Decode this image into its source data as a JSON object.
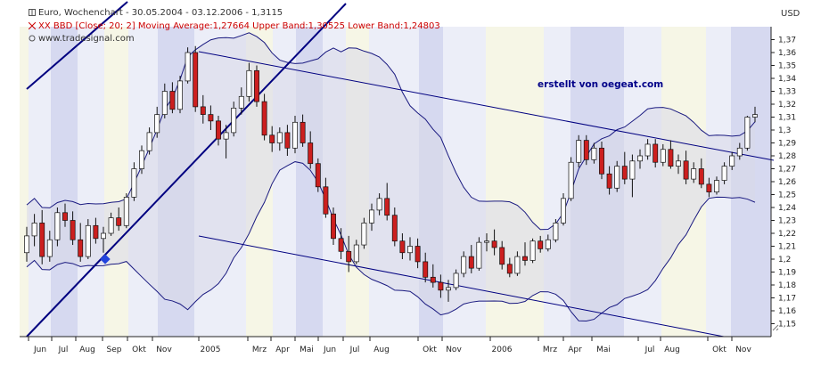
{
  "header": {
    "title": "Euro, Wochenchart - 30.05.2004 - 03.12.2006 - 1,3115",
    "indicator": "XX BBD [Close; 20; 2] Moving Average:1,27664 Upper Band:1,30525 Lower Band:1,24803",
    "source": "www.tradesignal.com"
  },
  "currency": "USD",
  "annotation": "erstellt von oegeat.com",
  "colors": {
    "up_candle": "#ffffff",
    "down_candle": "#cc1f1f",
    "band_line": "#1a1a80",
    "trend_line": "#000080",
    "band_fill": "#d9d9e8",
    "stripe_light": "#eceef8",
    "stripe_yellow": "#f6f6e6",
    "stripe_blue": "#d6d9f0",
    "marker": "#2244dd"
  },
  "chart_data": {
    "type": "candlestick",
    "title": "Euro, Wochenchart - 30.05.2004 - 03.12.2006 - 1,3115",
    "ylabel": "USD",
    "ylim": [
      1.14,
      1.38
    ],
    "y_ticks": [
      "1,15",
      "1,16",
      "1,17",
      "1,18",
      "1,19",
      "1,2",
      "1,21",
      "1,22",
      "1,23",
      "1,24",
      "1,25",
      "1,26",
      "1,27",
      "1,28",
      "1,29",
      "1,3",
      "1,31",
      "1,32",
      "1,33",
      "1,34",
      "1,35",
      "1,36",
      "1,37"
    ],
    "x_ticks": [
      "Jun",
      "Jul",
      "Aug",
      "Sep",
      "Okt",
      "Nov",
      "2005",
      "Mrz",
      "Apr",
      "Mai",
      "Jun",
      "Jul",
      "Aug",
      "Okt",
      "Nov",
      "2006",
      "Mrz",
      "Apr",
      "Mai",
      "Jul",
      "Aug",
      "Okt",
      "Nov"
    ],
    "candles": [
      {
        "o": 1.205,
        "h": 1.225,
        "l": 1.198,
        "c": 1.218
      },
      {
        "o": 1.218,
        "h": 1.235,
        "l": 1.21,
        "c": 1.228
      },
      {
        "o": 1.228,
        "h": 1.238,
        "l": 1.196,
        "c": 1.202
      },
      {
        "o": 1.202,
        "h": 1.222,
        "l": 1.198,
        "c": 1.215
      },
      {
        "o": 1.215,
        "h": 1.24,
        "l": 1.21,
        "c": 1.236
      },
      {
        "o": 1.236,
        "h": 1.243,
        "l": 1.225,
        "c": 1.23
      },
      {
        "o": 1.23,
        "h": 1.237,
        "l": 1.211,
        "c": 1.215
      },
      {
        "o": 1.215,
        "h": 1.228,
        "l": 1.198,
        "c": 1.202
      },
      {
        "o": 1.202,
        "h": 1.231,
        "l": 1.2,
        "c": 1.226
      },
      {
        "o": 1.226,
        "h": 1.232,
        "l": 1.212,
        "c": 1.216
      },
      {
        "o": 1.216,
        "h": 1.225,
        "l": 1.205,
        "c": 1.22
      },
      {
        "o": 1.22,
        "h": 1.236,
        "l": 1.218,
        "c": 1.232
      },
      {
        "o": 1.232,
        "h": 1.24,
        "l": 1.222,
        "c": 1.226
      },
      {
        "o": 1.226,
        "h": 1.251,
        "l": 1.224,
        "c": 1.248
      },
      {
        "o": 1.248,
        "h": 1.275,
        "l": 1.245,
        "c": 1.27
      },
      {
        "o": 1.27,
        "h": 1.288,
        "l": 1.266,
        "c": 1.284
      },
      {
        "o": 1.284,
        "h": 1.302,
        "l": 1.281,
        "c": 1.298
      },
      {
        "o": 1.298,
        "h": 1.318,
        "l": 1.294,
        "c": 1.312
      },
      {
        "o": 1.312,
        "h": 1.336,
        "l": 1.309,
        "c": 1.33
      },
      {
        "o": 1.33,
        "h": 1.337,
        "l": 1.313,
        "c": 1.316
      },
      {
        "o": 1.316,
        "h": 1.342,
        "l": 1.313,
        "c": 1.338
      },
      {
        "o": 1.338,
        "h": 1.364,
        "l": 1.336,
        "c": 1.36
      },
      {
        "o": 1.36,
        "h": 1.365,
        "l": 1.314,
        "c": 1.318
      },
      {
        "o": 1.318,
        "h": 1.327,
        "l": 1.305,
        "c": 1.312
      },
      {
        "o": 1.312,
        "h": 1.319,
        "l": 1.3,
        "c": 1.307
      },
      {
        "o": 1.307,
        "h": 1.311,
        "l": 1.288,
        "c": 1.293
      },
      {
        "o": 1.293,
        "h": 1.304,
        "l": 1.278,
        "c": 1.298
      },
      {
        "o": 1.298,
        "h": 1.322,
        "l": 1.295,
        "c": 1.317
      },
      {
        "o": 1.317,
        "h": 1.333,
        "l": 1.312,
        "c": 1.326
      },
      {
        "o": 1.326,
        "h": 1.352,
        "l": 1.322,
        "c": 1.346
      },
      {
        "o": 1.346,
        "h": 1.35,
        "l": 1.318,
        "c": 1.322
      },
      {
        "o": 1.322,
        "h": 1.328,
        "l": 1.292,
        "c": 1.296
      },
      {
        "o": 1.296,
        "h": 1.303,
        "l": 1.283,
        "c": 1.29
      },
      {
        "o": 1.29,
        "h": 1.302,
        "l": 1.284,
        "c": 1.298
      },
      {
        "o": 1.298,
        "h": 1.304,
        "l": 1.28,
        "c": 1.286
      },
      {
        "o": 1.286,
        "h": 1.311,
        "l": 1.282,
        "c": 1.306
      },
      {
        "o": 1.306,
        "h": 1.312,
        "l": 1.287,
        "c": 1.29
      },
      {
        "o": 1.29,
        "h": 1.299,
        "l": 1.27,
        "c": 1.274
      },
      {
        "o": 1.274,
        "h": 1.278,
        "l": 1.252,
        "c": 1.256
      },
      {
        "o": 1.256,
        "h": 1.263,
        "l": 1.232,
        "c": 1.235
      },
      {
        "o": 1.235,
        "h": 1.24,
        "l": 1.211,
        "c": 1.216
      },
      {
        "o": 1.216,
        "h": 1.224,
        "l": 1.2,
        "c": 1.206
      },
      {
        "o": 1.206,
        "h": 1.218,
        "l": 1.19,
        "c": 1.198
      },
      {
        "o": 1.198,
        "h": 1.215,
        "l": 1.196,
        "c": 1.211
      },
      {
        "o": 1.211,
        "h": 1.232,
        "l": 1.208,
        "c": 1.228
      },
      {
        "o": 1.228,
        "h": 1.243,
        "l": 1.222,
        "c": 1.238
      },
      {
        "o": 1.238,
        "h": 1.251,
        "l": 1.234,
        "c": 1.247
      },
      {
        "o": 1.247,
        "h": 1.259,
        "l": 1.23,
        "c": 1.234
      },
      {
        "o": 1.234,
        "h": 1.24,
        "l": 1.21,
        "c": 1.214
      },
      {
        "o": 1.214,
        "h": 1.22,
        "l": 1.2,
        "c": 1.205
      },
      {
        "o": 1.205,
        "h": 1.217,
        "l": 1.199,
        "c": 1.21
      },
      {
        "o": 1.21,
        "h": 1.216,
        "l": 1.193,
        "c": 1.198
      },
      {
        "o": 1.198,
        "h": 1.205,
        "l": 1.182,
        "c": 1.186
      },
      {
        "o": 1.186,
        "h": 1.196,
        "l": 1.178,
        "c": 1.182
      },
      {
        "o": 1.182,
        "h": 1.188,
        "l": 1.17,
        "c": 1.176
      },
      {
        "o": 1.176,
        "h": 1.184,
        "l": 1.167,
        "c": 1.178
      },
      {
        "o": 1.178,
        "h": 1.192,
        "l": 1.176,
        "c": 1.189
      },
      {
        "o": 1.189,
        "h": 1.206,
        "l": 1.186,
        "c": 1.202
      },
      {
        "o": 1.202,
        "h": 1.211,
        "l": 1.189,
        "c": 1.193
      },
      {
        "o": 1.193,
        "h": 1.217,
        "l": 1.191,
        "c": 1.213
      },
      {
        "o": 1.213,
        "h": 1.22,
        "l": 1.206,
        "c": 1.214
      },
      {
        "o": 1.214,
        "h": 1.223,
        "l": 1.203,
        "c": 1.209
      },
      {
        "o": 1.209,
        "h": 1.214,
        "l": 1.192,
        "c": 1.196
      },
      {
        "o": 1.196,
        "h": 1.201,
        "l": 1.186,
        "c": 1.189
      },
      {
        "o": 1.189,
        "h": 1.206,
        "l": 1.187,
        "c": 1.202
      },
      {
        "o": 1.202,
        "h": 1.213,
        "l": 1.195,
        "c": 1.199
      },
      {
        "o": 1.199,
        "h": 1.216,
        "l": 1.197,
        "c": 1.214
      },
      {
        "o": 1.214,
        "h": 1.218,
        "l": 1.205,
        "c": 1.208
      },
      {
        "o": 1.208,
        "h": 1.219,
        "l": 1.206,
        "c": 1.215
      },
      {
        "o": 1.215,
        "h": 1.231,
        "l": 1.213,
        "c": 1.228
      },
      {
        "o": 1.228,
        "h": 1.251,
        "l": 1.226,
        "c": 1.247
      },
      {
        "o": 1.247,
        "h": 1.279,
        "l": 1.245,
        "c": 1.275
      },
      {
        "o": 1.275,
        "h": 1.296,
        "l": 1.271,
        "c": 1.292
      },
      {
        "o": 1.292,
        "h": 1.296,
        "l": 1.273,
        "c": 1.277
      },
      {
        "o": 1.277,
        "h": 1.29,
        "l": 1.274,
        "c": 1.286
      },
      {
        "o": 1.286,
        "h": 1.291,
        "l": 1.262,
        "c": 1.266
      },
      {
        "o": 1.266,
        "h": 1.272,
        "l": 1.25,
        "c": 1.255
      },
      {
        "o": 1.255,
        "h": 1.276,
        "l": 1.252,
        "c": 1.272
      },
      {
        "o": 1.272,
        "h": 1.283,
        "l": 1.258,
        "c": 1.262
      },
      {
        "o": 1.262,
        "h": 1.281,
        "l": 1.248,
        "c": 1.276
      },
      {
        "o": 1.276,
        "h": 1.285,
        "l": 1.27,
        "c": 1.28
      },
      {
        "o": 1.28,
        "h": 1.293,
        "l": 1.277,
        "c": 1.289
      },
      {
        "o": 1.289,
        "h": 1.293,
        "l": 1.271,
        "c": 1.275
      },
      {
        "o": 1.275,
        "h": 1.289,
        "l": 1.272,
        "c": 1.285
      },
      {
        "o": 1.285,
        "h": 1.292,
        "l": 1.27,
        "c": 1.272
      },
      {
        "o": 1.272,
        "h": 1.281,
        "l": 1.266,
        "c": 1.276
      },
      {
        "o": 1.276,
        "h": 1.284,
        "l": 1.258,
        "c": 1.262
      },
      {
        "o": 1.262,
        "h": 1.275,
        "l": 1.259,
        "c": 1.27
      },
      {
        "o": 1.27,
        "h": 1.278,
        "l": 1.255,
        "c": 1.258
      },
      {
        "o": 1.258,
        "h": 1.263,
        "l": 1.248,
        "c": 1.252
      },
      {
        "o": 1.252,
        "h": 1.264,
        "l": 1.25,
        "c": 1.261
      },
      {
        "o": 1.261,
        "h": 1.275,
        "l": 1.258,
        "c": 1.272
      },
      {
        "o": 1.272,
        "h": 1.283,
        "l": 1.269,
        "c": 1.28
      },
      {
        "o": 1.28,
        "h": 1.29,
        "l": 1.277,
        "c": 1.286
      },
      {
        "o": 1.286,
        "h": 1.311,
        "l": 1.284,
        "c": 1.31
      },
      {
        "o": 1.31,
        "h": 1.318,
        "l": 1.306,
        "c": 1.312
      }
    ]
  }
}
